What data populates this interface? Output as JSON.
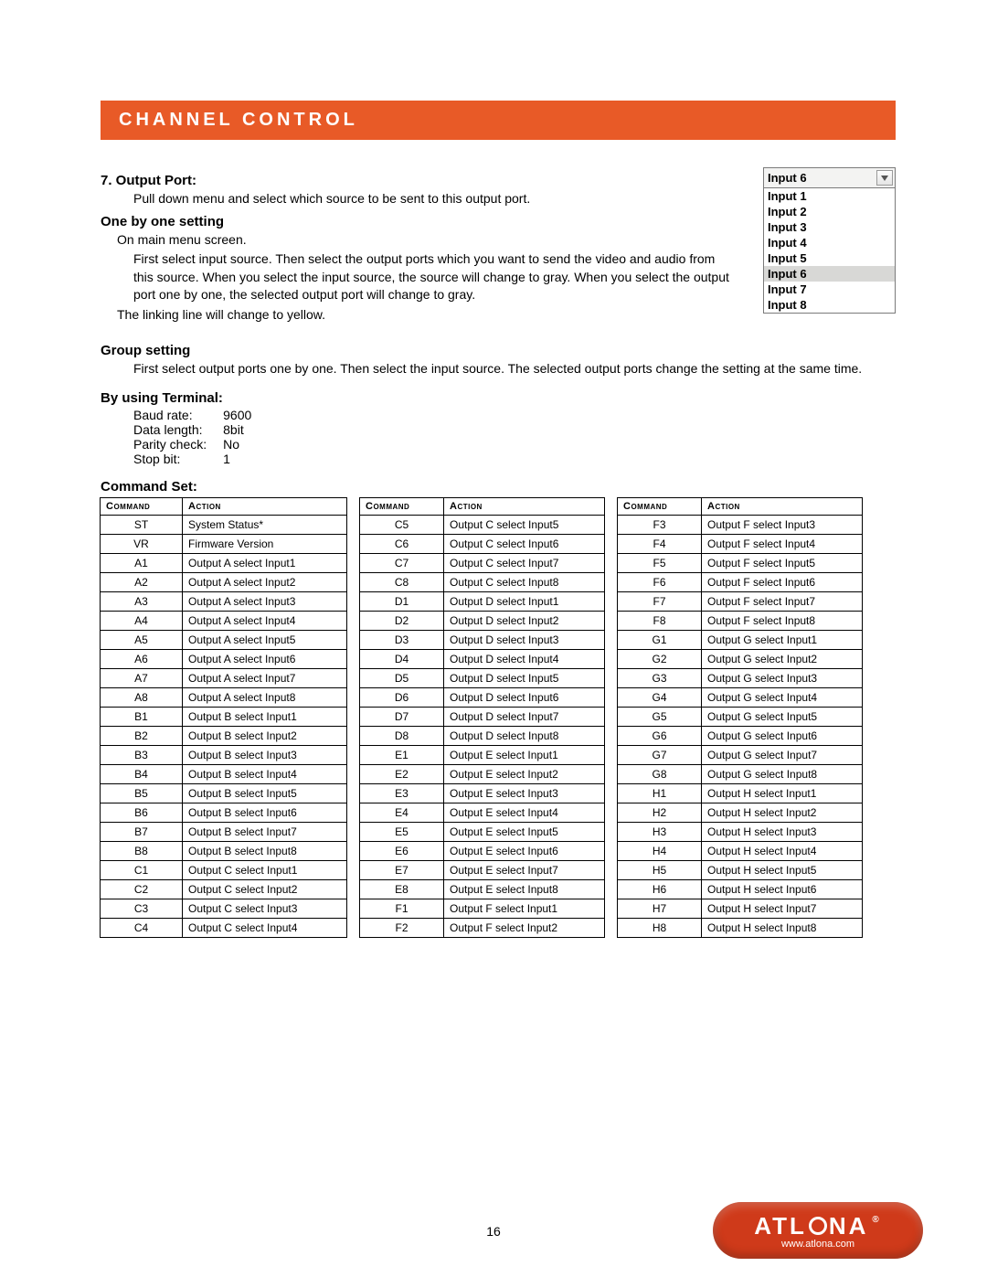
{
  "banner": {
    "title": "CHANNEL CONTROL"
  },
  "section7": {
    "heading": "7. Output Port:",
    "p1": "Pull down menu and select which source to be sent to this output port."
  },
  "one_by_one": {
    "heading": "One by one setting",
    "p0": "On main menu screen.",
    "p1": "First select input source. Then select the output ports which you want to send the video and audio from this source. When you select the input source, the source will change to gray. When you select the output port one by one, the selected output port will change to gray.",
    "p2": "The linking line will change to yellow."
  },
  "group": {
    "heading": "Group setting",
    "p1": "First select output ports one by one. Then select the input source. The selected output ports change the setting at the same time."
  },
  "terminal": {
    "heading": "By using Terminal:",
    "rows": [
      [
        "Baud rate:",
        "9600"
      ],
      [
        "Data length:",
        "8bit"
      ],
      [
        "Parity check:",
        "No"
      ],
      [
        "Stop bit:",
        "1"
      ]
    ]
  },
  "dropdown": {
    "selected": "Input 6",
    "selected_index": 5,
    "options": [
      "Input 1",
      "Input 2",
      "Input 3",
      "Input 4",
      "Input 5",
      "Input 6",
      "Input 7",
      "Input 8"
    ]
  },
  "command_set": {
    "heading": "Command Set:",
    "headers": [
      "Command",
      "Action",
      "Command",
      "Action",
      "Command",
      "Action"
    ],
    "rows": [
      [
        "ST",
        "System Status*",
        "C5",
        "Output C select Input5",
        "F3",
        "Output F select Input3"
      ],
      [
        "VR",
        "Firmware Version",
        "C6",
        "Output C select Input6",
        "F4",
        "Output F select Input4"
      ],
      [
        "A1",
        "Output A select Input1",
        "C7",
        "Output C select Input7",
        "F5",
        "Output F select Input5"
      ],
      [
        "A2",
        "Output A select Input2",
        "C8",
        "Output C select Input8",
        "F6",
        "Output F select Input6"
      ],
      [
        "A3",
        "Output A select Input3",
        "D1",
        "Output D select Input1",
        "F7",
        "Output F select Input7"
      ],
      [
        "A4",
        "Output A select Input4",
        "D2",
        "Output D select Input2",
        "F8",
        "Output F select Input8"
      ],
      [
        "A5",
        "Output A select Input5",
        "D3",
        "Output D select Input3",
        "G1",
        "Output G select Input1"
      ],
      [
        "A6",
        "Output A select Input6",
        "D4",
        "Output D select Input4",
        "G2",
        "Output G select Input2"
      ],
      [
        "A7",
        "Output A select Input7",
        "D5",
        "Output D select Input5",
        "G3",
        "Output G select Input3"
      ],
      [
        "A8",
        "Output A select Input8",
        "D6",
        "Output D select Input6",
        "G4",
        "Output G select Input4"
      ],
      [
        "B1",
        "Output B select Input1",
        "D7",
        "Output D select Input7",
        "G5",
        "Output G select Input5"
      ],
      [
        "B2",
        "Output B select Input2",
        "D8",
        "Output D select Input8",
        "G6",
        "Output G select Input6"
      ],
      [
        "B3",
        "Output B select Input3",
        "E1",
        "Output E select Input1",
        "G7",
        "Output G select Input7"
      ],
      [
        "B4",
        "Output B select Input4",
        "E2",
        "Output E select Input2",
        "G8",
        "Output G select Input8"
      ],
      [
        "B5",
        "Output B select Input5",
        "E3",
        "Output E select Input3",
        "H1",
        "Output H select Input1"
      ],
      [
        "B6",
        "Output B select Input6",
        "E4",
        "Output E select Input4",
        "H2",
        "Output H select Input2"
      ],
      [
        "B7",
        "Output B select Input7",
        "E5",
        "Output E select Input5",
        "H3",
        "Output H select Input3"
      ],
      [
        "B8",
        "Output B select Input8",
        "E6",
        "Output E select Input6",
        "H4",
        "Output H select Input4"
      ],
      [
        "C1",
        "Output C select Input1",
        "E7",
        "Output E select Input7",
        "H5",
        "Output H select Input5"
      ],
      [
        "C2",
        "Output C select Input2",
        "E8",
        "Output E select Input8",
        "H6",
        "Output H select Input6"
      ],
      [
        "C3",
        "Output C select Input3",
        "F1",
        "Output F select Input1",
        "H7",
        "Output H select Input7"
      ],
      [
        "C4",
        "Output C select Input4",
        "F2",
        "Output F select Input2",
        "H8",
        "Output H select Input8"
      ]
    ]
  },
  "footer": {
    "page_number": "16",
    "brand_letters_pre": "ATL",
    "brand_letters_post": "NA",
    "url": "www.atlona.com",
    "reg": "®"
  },
  "colors": {
    "banner_bg": "#e85a27",
    "logo_bg": "#cf3a1a",
    "border": "#000000",
    "dropdown_sel_bg": "#d8d8d6"
  }
}
